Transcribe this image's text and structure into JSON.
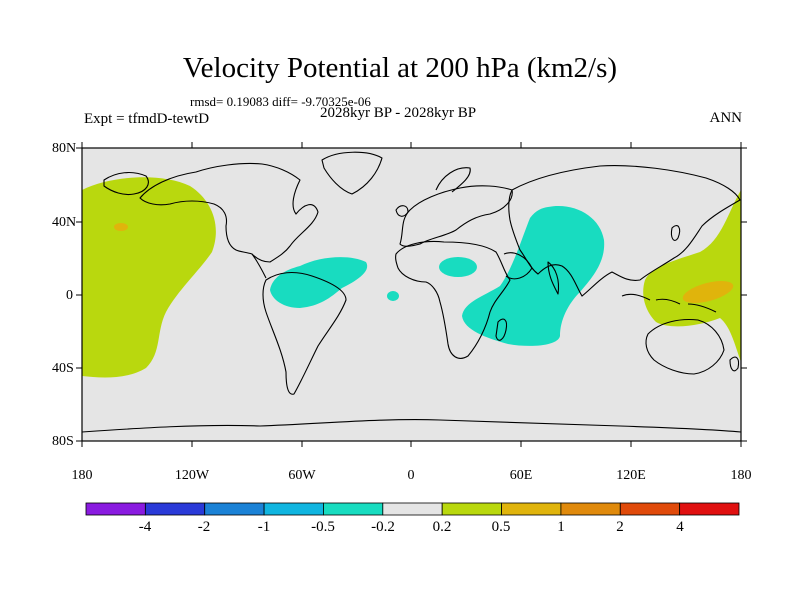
{
  "title": "Velocity Potential at 200 hPa (km2/s)",
  "stats": "rmsd= 0.19083 diff= -9.70325e-06",
  "experiment": "Expt = tfmdD-tewtD",
  "period": "2028kyr BP - 2028kyr BP",
  "season": "ANN",
  "lat_ticks": [
    "80N",
    "40N",
    "0",
    "40S",
    "80S"
  ],
  "lon_ticks": [
    "180",
    "120W",
    "60W",
    "0",
    "60E",
    "120E",
    "180"
  ],
  "colorbar": {
    "colors": [
      "#8a1be0",
      "#2a3ad8",
      "#1b82d6",
      "#10b5e0",
      "#18dcc0",
      "#e5e5e5",
      "#b9d80e",
      "#e0b40c",
      "#e08a0c",
      "#e04a0a",
      "#e01010"
    ],
    "labels": [
      "-4",
      "-2",
      "-1",
      "-0.5",
      "-0.2",
      "0.2",
      "0.5",
      "1",
      "2",
      "4"
    ]
  },
  "map": {
    "background_color": "#e5e5e5",
    "positive_color": "#b9d80e",
    "positive_strong_color": "#e0b40c",
    "negative_color": "#18dcc0"
  }
}
